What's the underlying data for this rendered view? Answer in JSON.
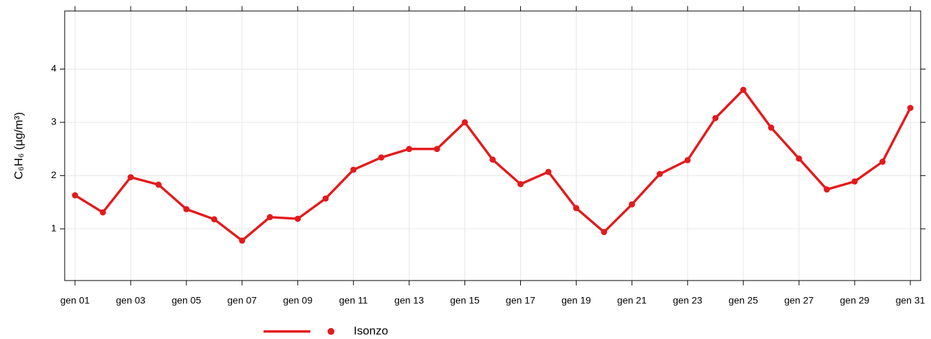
{
  "chart_data": {
    "type": "line",
    "y_label": "C₆H₆ (µg/m³)",
    "categories": [
      "gen 01",
      null,
      "gen 03",
      null,
      "gen 05",
      null,
      "gen 07",
      null,
      "gen 09",
      null,
      "gen 11",
      null,
      "gen 13",
      null,
      "gen 15",
      null,
      "gen 17",
      null,
      "gen 19",
      null,
      "gen 21",
      null,
      "gen 23",
      null,
      "gen 25",
      null,
      "gen 27",
      null,
      "gen 29",
      null,
      "gen 31"
    ],
    "series": [
      {
        "name": "Isonzo",
        "color": "#e41a1c",
        "values": [
          1.63,
          1.31,
          1.97,
          1.83,
          1.37,
          1.18,
          0.78,
          1.22,
          1.19,
          1.57,
          2.11,
          2.34,
          2.5,
          2.5,
          3.0,
          2.3,
          1.84,
          2.07,
          1.39,
          0.94,
          1.46,
          2.03,
          2.29,
          3.08,
          3.61,
          2.9,
          2.32,
          1.74,
          1.89,
          2.26,
          3.27
        ]
      }
    ],
    "ylim": [
      0.03,
      5.09
    ],
    "yticks": [
      1,
      2,
      3,
      4
    ],
    "grid": true
  }
}
